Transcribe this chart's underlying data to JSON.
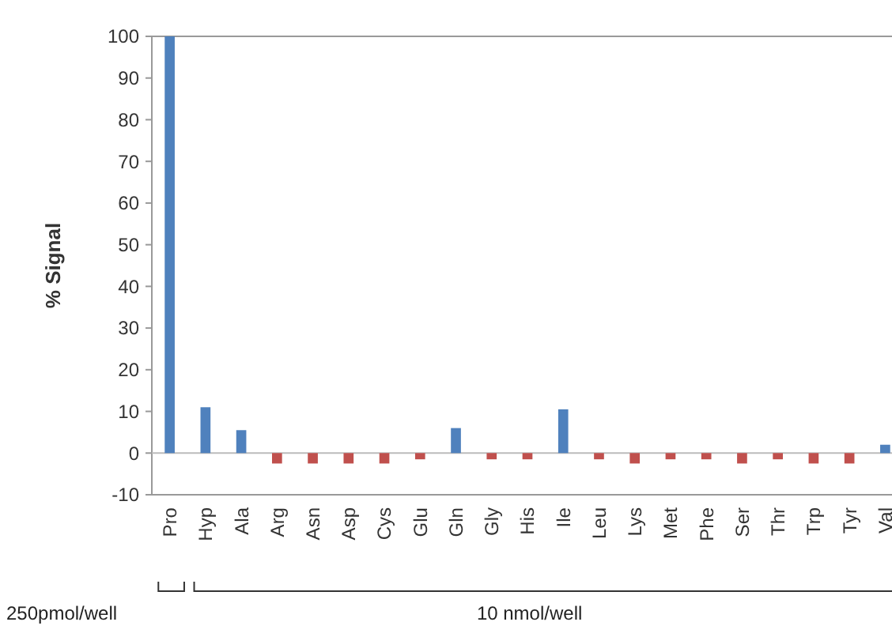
{
  "chart_data": {
    "type": "bar",
    "ylabel": "% Signal",
    "categories": [
      "Pro",
      "Hyp",
      "Ala",
      "Arg",
      "Asn",
      "Asp",
      "Cys",
      "Glu",
      "Gln",
      "Gly",
      "His",
      "Ile",
      "Leu",
      "Lys",
      "Met",
      "Phe",
      "Ser",
      "Thr",
      "Trp",
      "Tyr",
      "Val"
    ],
    "values": [
      100,
      11,
      5.5,
      -2.5,
      -2.5,
      -2.5,
      -2.5,
      -1.5,
      6,
      -1.5,
      -1.5,
      10.5,
      -1.5,
      -2.5,
      -1.5,
      -1.5,
      -2.5,
      -1.5,
      -2.5,
      -2.5,
      2
    ],
    "colors": [
      "#4f81bd",
      "#4f81bd",
      "#4f81bd",
      "#c0504d",
      "#c0504d",
      "#c0504d",
      "#c0504d",
      "#c0504d",
      "#4f81bd",
      "#c0504d",
      "#c0504d",
      "#4f81bd",
      "#c0504d",
      "#c0504d",
      "#c0504d",
      "#c0504d",
      "#c0504d",
      "#c0504d",
      "#c0504d",
      "#c0504d",
      "#4f81bd"
    ],
    "ylim": [
      -10,
      100
    ],
    "yticks": [
      -10,
      0,
      10,
      20,
      30,
      40,
      50,
      60,
      70,
      80,
      90,
      100
    ],
    "annotations": [
      "250pmol/well",
      "10 nmol/well"
    ]
  }
}
